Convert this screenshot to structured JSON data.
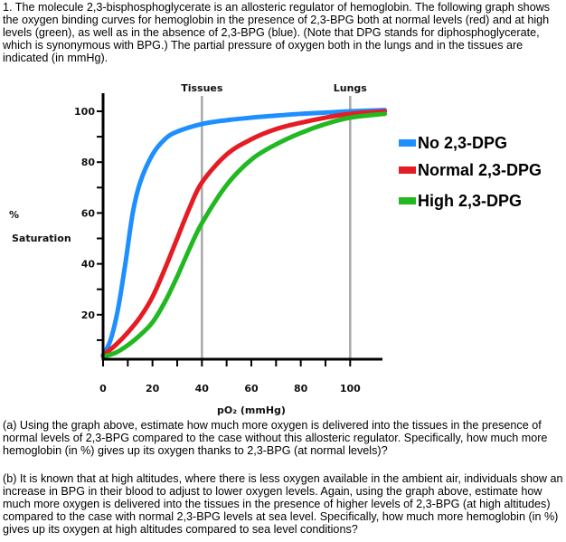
{
  "question": {
    "intro": "1. The molecule 2,3-bisphosphoglycerate is an allosteric regulator of hemoglobin. The following graph shows the oxygen binding curves for hemoglobin in the presence of 2,3-BPG both at normal levels (red) and at high levels (green), as well as in the absence of 2,3-BPG (blue). (Note that DPG stands for diphosphoglycerate, which is synonymous with BPG.) The partial pressure of oxygen both in the lungs and in the tissues are indicated (in mmHg).",
    "part_a": "(a) Using the graph above, estimate how much more oxygen is delivered into the tissues in the presence of normal levels of 2,3-BPG compared to the case without this allosteric regulator. Specifically, how much more hemoglobin (in %) gives up its oxygen thanks to 2,3-BPG (at normal levels)?",
    "part_b": "(b) It is known that at high altitudes, where there is less oxygen available in the ambient air, individuals show an increase in BPG in their blood to adjust to lower oxygen levels. Again, using the graph above, estimate how much more oxygen is delivered into the tissues in the presence of higher levels of 2,3-BPG (at high altitudes) compared to the case with normal 2,3-BPG levels at sea level. Specifically, how much more hemoglobin (in %) gives up its oxygen at high altitudes compared to sea level conditions?"
  },
  "chart_data": {
    "type": "line",
    "title": "",
    "xlabel": "pO₂ (mmHg)",
    "ylabel_line1": "%",
    "ylabel_line2": "Saturation",
    "xlim": [
      0,
      115
    ],
    "ylim": [
      0,
      100
    ],
    "x_ticks": [
      0,
      10,
      20,
      30,
      40,
      50,
      60,
      70,
      80,
      90,
      100
    ],
    "x_tick_labels": [
      "0",
      "20",
      "40",
      "60",
      "80",
      "100"
    ],
    "x_tick_label_values": [
      0,
      20,
      40,
      60,
      80,
      100
    ],
    "y_ticks": [
      10,
      20,
      30,
      40,
      50,
      60,
      70,
      80,
      90,
      100
    ],
    "y_tick_labels": [
      "20",
      "40",
      "60",
      "80",
      "100"
    ],
    "y_tick_label_values": [
      20,
      40,
      60,
      80,
      100
    ],
    "grid": false,
    "reference_lines": [
      {
        "label": "Tissues",
        "x": 40
      },
      {
        "label": "Lungs",
        "x": 100
      }
    ],
    "legend_position": "right",
    "series": [
      {
        "name": "No 2,3-DPG",
        "color": "#1e8fff",
        "x": [
          0,
          3,
          6,
          9,
          12,
          15,
          20,
          25,
          30,
          40,
          50,
          60,
          70,
          80,
          90,
          100,
          114
        ],
        "y": [
          4,
          10,
          22,
          40,
          60,
          72,
          83,
          89,
          92,
          95,
          96.5,
          97.5,
          98.3,
          99,
          99.5,
          100,
          100.5
        ]
      },
      {
        "name": "Normal 2,3-DPG",
        "color": "#e51c23",
        "x": [
          0,
          5,
          10,
          15,
          20,
          25,
          30,
          35,
          40,
          50,
          60,
          70,
          80,
          90,
          100,
          114
        ],
        "y": [
          4,
          8,
          13,
          19,
          27,
          38,
          50,
          62,
          72,
          83,
          89,
          93,
          95.5,
          97.5,
          99,
          100
        ]
      },
      {
        "name": "High 2,3-DPG",
        "color": "#22b822",
        "x": [
          0,
          5,
          10,
          15,
          20,
          25,
          30,
          35,
          40,
          50,
          60,
          70,
          80,
          90,
          100,
          114
        ],
        "y": [
          3.5,
          5,
          8,
          12,
          17,
          25,
          35,
          46,
          56,
          71,
          81,
          87,
          91.5,
          95,
          97.5,
          99
        ]
      }
    ]
  }
}
